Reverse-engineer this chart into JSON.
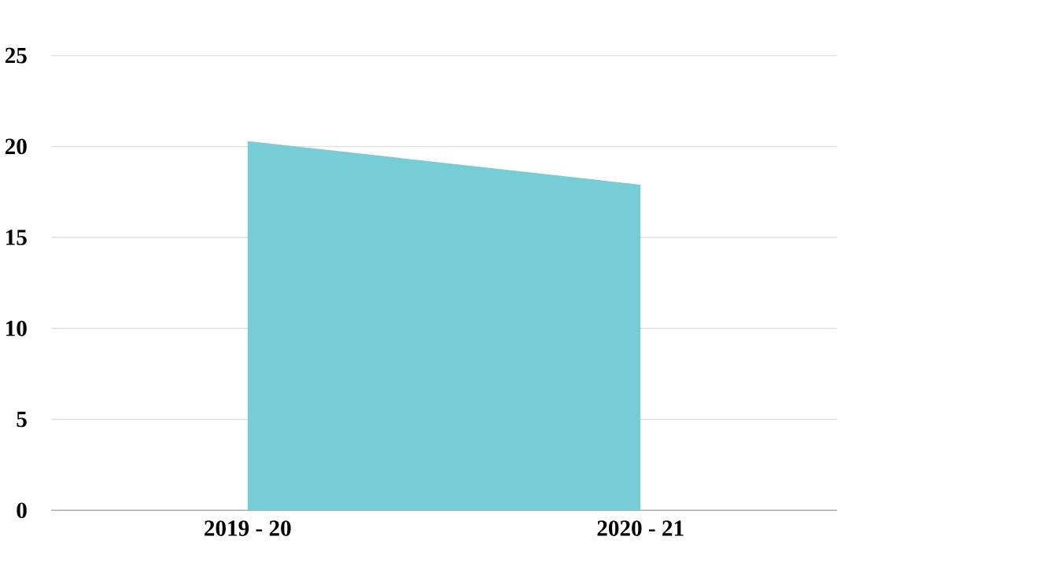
{
  "chart_data": {
    "type": "area",
    "categories": [
      "2019 - 20",
      "2020 - 21"
    ],
    "values": [
      20.3,
      17.9
    ],
    "color": "#77cdd6",
    "ylim": [
      0,
      25
    ],
    "yticks": [
      0,
      5,
      10,
      15,
      20,
      25
    ],
    "grid": "y"
  }
}
